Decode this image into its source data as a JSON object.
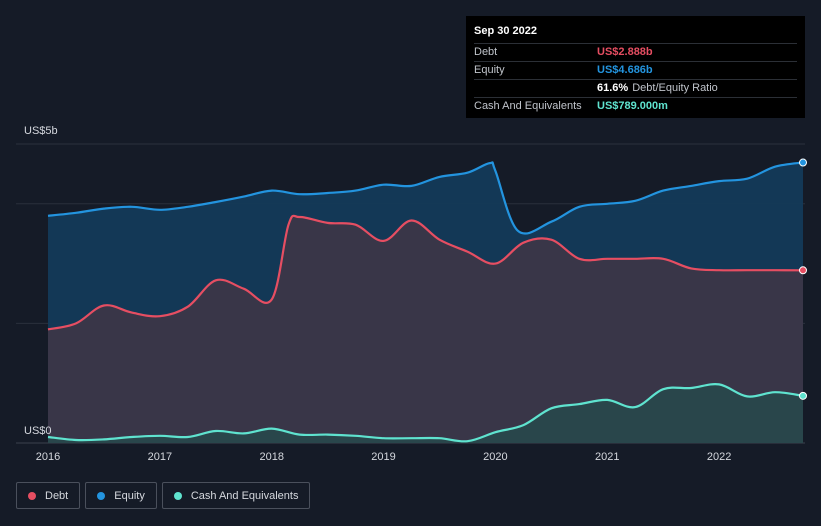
{
  "chart_data": {
    "type": "area",
    "ylim": [
      0,
      5
    ],
    "y_unit": "US$ billions",
    "y_ticks": [
      {
        "value": 5,
        "label": "US$5b"
      },
      {
        "value": 0,
        "label": "US$0"
      }
    ],
    "x_ticks": [
      "2016",
      "2017",
      "2018",
      "2019",
      "2020",
      "2021",
      "2022"
    ],
    "grid": true,
    "legend_position": "bottom-left",
    "series": [
      {
        "name": "Equity",
        "color": "#2394df",
        "points": [
          [
            2016.0,
            3.8
          ],
          [
            2016.25,
            3.85
          ],
          [
            2016.5,
            3.92
          ],
          [
            2016.75,
            3.95
          ],
          [
            2017.0,
            3.9
          ],
          [
            2017.25,
            3.95
          ],
          [
            2017.5,
            4.03
          ],
          [
            2017.75,
            4.12
          ],
          [
            2018.0,
            4.22
          ],
          [
            2018.25,
            4.16
          ],
          [
            2018.5,
            4.18
          ],
          [
            2018.75,
            4.22
          ],
          [
            2019.0,
            4.32
          ],
          [
            2019.25,
            4.3
          ],
          [
            2019.5,
            4.45
          ],
          [
            2019.75,
            4.52
          ],
          [
            2019.95,
            4.68
          ],
          [
            2020.0,
            4.55
          ],
          [
            2020.2,
            3.55
          ],
          [
            2020.5,
            3.7
          ],
          [
            2020.75,
            3.95
          ],
          [
            2021.0,
            4.0
          ],
          [
            2021.25,
            4.05
          ],
          [
            2021.5,
            4.22
          ],
          [
            2021.75,
            4.3
          ],
          [
            2022.0,
            4.38
          ],
          [
            2022.25,
            4.42
          ],
          [
            2022.5,
            4.62
          ],
          [
            2022.75,
            4.69
          ]
        ]
      },
      {
        "name": "Debt",
        "color": "#e64e62",
        "points": [
          [
            2016.0,
            1.9
          ],
          [
            2016.25,
            2.0
          ],
          [
            2016.5,
            2.3
          ],
          [
            2016.75,
            2.18
          ],
          [
            2017.0,
            2.12
          ],
          [
            2017.25,
            2.28
          ],
          [
            2017.5,
            2.72
          ],
          [
            2017.75,
            2.58
          ],
          [
            2018.0,
            2.4
          ],
          [
            2018.15,
            3.65
          ],
          [
            2018.25,
            3.78
          ],
          [
            2018.5,
            3.68
          ],
          [
            2018.75,
            3.65
          ],
          [
            2019.0,
            3.38
          ],
          [
            2019.25,
            3.72
          ],
          [
            2019.5,
            3.4
          ],
          [
            2019.75,
            3.2
          ],
          [
            2020.0,
            3.0
          ],
          [
            2020.25,
            3.35
          ],
          [
            2020.5,
            3.4
          ],
          [
            2020.75,
            3.08
          ],
          [
            2021.0,
            3.08
          ],
          [
            2021.25,
            3.08
          ],
          [
            2021.5,
            3.08
          ],
          [
            2021.75,
            2.92
          ],
          [
            2022.0,
            2.89
          ],
          [
            2022.25,
            2.89
          ],
          [
            2022.5,
            2.89
          ],
          [
            2022.75,
            2.888
          ]
        ]
      },
      {
        "name": "Cash And Equivalents",
        "color": "#5fe3cf",
        "points": [
          [
            2016.0,
            0.1
          ],
          [
            2016.25,
            0.05
          ],
          [
            2016.5,
            0.06
          ],
          [
            2016.75,
            0.1
          ],
          [
            2017.0,
            0.12
          ],
          [
            2017.25,
            0.1
          ],
          [
            2017.5,
            0.2
          ],
          [
            2017.75,
            0.16
          ],
          [
            2018.0,
            0.24
          ],
          [
            2018.25,
            0.14
          ],
          [
            2018.5,
            0.14
          ],
          [
            2018.75,
            0.12
          ],
          [
            2019.0,
            0.08
          ],
          [
            2019.25,
            0.08
          ],
          [
            2019.5,
            0.08
          ],
          [
            2019.75,
            0.03
          ],
          [
            2020.0,
            0.18
          ],
          [
            2020.25,
            0.3
          ],
          [
            2020.5,
            0.58
          ],
          [
            2020.75,
            0.65
          ],
          [
            2021.0,
            0.72
          ],
          [
            2021.25,
            0.6
          ],
          [
            2021.5,
            0.9
          ],
          [
            2021.75,
            0.92
          ],
          [
            2022.0,
            0.98
          ],
          [
            2022.25,
            0.78
          ],
          [
            2022.5,
            0.85
          ],
          [
            2022.75,
            0.789
          ]
        ]
      }
    ]
  },
  "tooltip": {
    "date": "Sep 30 2022",
    "rows": [
      {
        "label": "Debt",
        "value": "US$2.888b",
        "color": "#e64e62"
      },
      {
        "label": "Equity",
        "value": "US$4.686b",
        "color": "#2394df"
      },
      {
        "label": "",
        "value": "61.6%",
        "sub": "Debt/Equity Ratio",
        "color": "#ffffff"
      },
      {
        "label": "Cash And Equivalents",
        "value": "US$789.000m",
        "color": "#5fe3cf"
      }
    ]
  },
  "legend": [
    {
      "label": "Debt",
      "color": "#e64e62"
    },
    {
      "label": "Equity",
      "color": "#2394df"
    },
    {
      "label": "Cash And Equivalents",
      "color": "#5fe3cf"
    }
  ]
}
